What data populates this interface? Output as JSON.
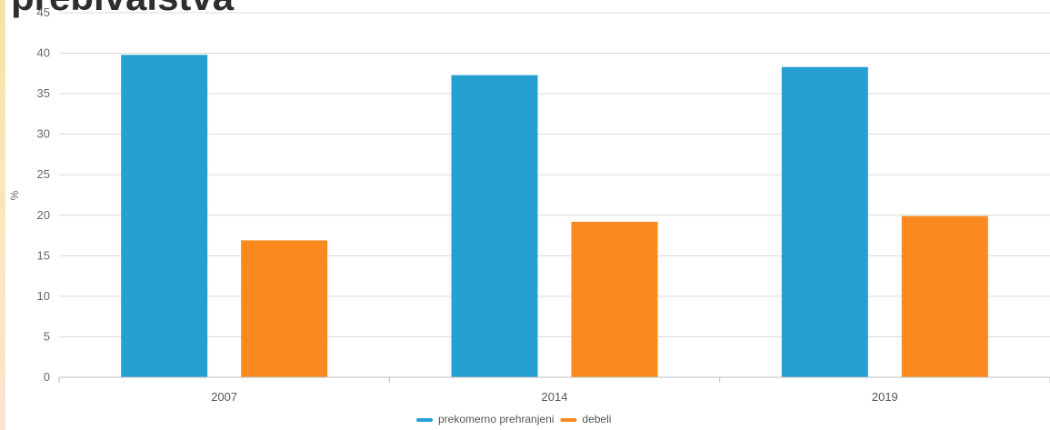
{
  "page": {
    "title": "prebivalstva"
  },
  "chart_data": {
    "type": "bar",
    "title": "prebivalstva",
    "ylabel": "%",
    "xlabel": "",
    "categories": [
      "2007",
      "2014",
      "2019"
    ],
    "series": [
      {
        "name": "prekomerno prehranjeni",
        "color": "#26a0d2",
        "values": [
          39.8,
          37.3,
          38.3
        ]
      },
      {
        "name": "debeli",
        "color": "#fa8a1f",
        "values": [
          16.9,
          19.2,
          19.9
        ]
      }
    ],
    "ylim": [
      0,
      45
    ],
    "yticks": [
      0,
      5,
      10,
      15,
      20,
      25,
      30,
      35,
      40,
      45
    ],
    "grid": true,
    "legend": "bottom-center"
  }
}
